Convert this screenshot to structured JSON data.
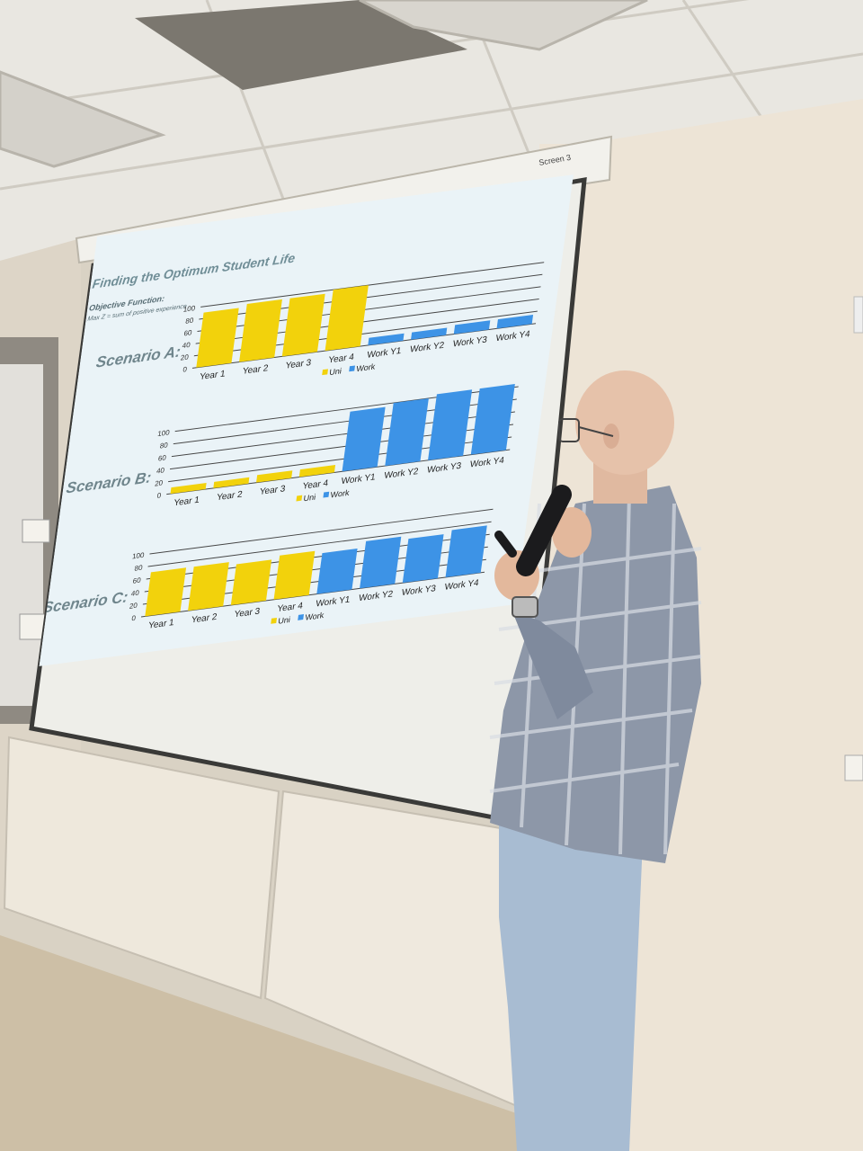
{
  "screen": {
    "label": "Screen 3"
  },
  "slide": {
    "title": "Finding the Optimum Student Life",
    "objective_heading": "Objective Function:",
    "objective_formula": "Max Z = sum of positive experience",
    "accent_uni": "#f2d20c",
    "accent_work": "#3d93e6",
    "background": "#eaf3f7"
  },
  "chart_data": [
    {
      "type": "bar",
      "title": "Scenario A:",
      "categories": [
        "Year 1",
        "Year 2",
        "Year 3",
        "Year 4",
        "Work Y1",
        "Work Y2",
        "Work Y3",
        "Work Y4"
      ],
      "series": [
        {
          "name": "Uni",
          "values": [
            90,
            95,
            95,
            100,
            null,
            null,
            null,
            null
          ]
        },
        {
          "name": "Work",
          "values": [
            null,
            null,
            null,
            null,
            12,
            12,
            15,
            15
          ]
        }
      ],
      "y_ticks": [
        "0",
        "20",
        "40",
        "60",
        "80",
        "100"
      ],
      "ylim": [
        0,
        100
      ],
      "legend": [
        "Uni",
        "Work"
      ]
    },
    {
      "type": "bar",
      "title": "Scenario B:",
      "categories": [
        "Year 1",
        "Year 2",
        "Year 3",
        "Year 4",
        "Work Y1",
        "Work Y2",
        "Work Y3",
        "Work Y4"
      ],
      "series": [
        {
          "name": "Uni",
          "values": [
            10,
            10,
            12,
            12,
            null,
            null,
            null,
            null
          ]
        },
        {
          "name": "Work",
          "values": [
            null,
            null,
            null,
            null,
            95,
            100,
            105,
            105
          ]
        }
      ],
      "y_ticks": [
        "0",
        "20",
        "40",
        "60",
        "80",
        "100"
      ],
      "ylim": [
        0,
        100
      ],
      "legend": [
        "Uni",
        "Work"
      ]
    },
    {
      "type": "bar",
      "title": "Scenario C:",
      "categories": [
        "Year 1",
        "Year 2",
        "Year 3",
        "Year 4",
        "Work Y1",
        "Work Y2",
        "Work Y3",
        "Work Y4"
      ],
      "series": [
        {
          "name": "Uni",
          "values": [
            70,
            70,
            65,
            70,
            null,
            null,
            null,
            null
          ]
        },
        {
          "name": "Work",
          "values": [
            null,
            null,
            null,
            null,
            65,
            75,
            70,
            75
          ]
        }
      ],
      "y_ticks": [
        "0",
        "20",
        "40",
        "60",
        "80",
        "100"
      ],
      "ylim": [
        0,
        100
      ],
      "legend": [
        "Uni",
        "Work"
      ]
    }
  ]
}
